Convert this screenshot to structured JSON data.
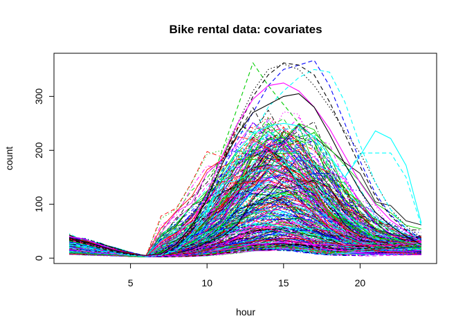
{
  "chart_data": {
    "type": "line",
    "title": "Bike rental data: covariates",
    "xlabel": "hour",
    "ylabel": "count",
    "xlim": [
      0,
      25
    ],
    "ylim": [
      -10,
      380
    ],
    "x_ticks": [
      "5",
      "10",
      "15",
      "20"
    ],
    "x_tick_values": [
      5,
      10,
      15,
      20
    ],
    "y_ticks": [
      "0",
      "100",
      "200",
      "300"
    ],
    "y_tick_values": [
      0,
      100,
      200,
      300
    ],
    "x": [
      1,
      2,
      3,
      4,
      5,
      6,
      7,
      8,
      9,
      10,
      11,
      12,
      13,
      14,
      15,
      16,
      17,
      18,
      19,
      20,
      21,
      22,
      23,
      24
    ],
    "grid": false,
    "legend": "none",
    "palette": [
      "#000000",
      "#FF0000",
      "#00CD00",
      "#0000FF",
      "#00FFFF",
      "#FF00FF"
    ],
    "line_styles": [
      "solid",
      "dashed",
      "dotted",
      "dotdash"
    ],
    "series_count": 360,
    "series_generator_seed": 12345,
    "highlighted_series": [
      {
        "color": "#00FFFF",
        "dash": "solid",
        "values": [
          30,
          25,
          18,
          12,
          6,
          4,
          6,
          18,
          45,
          90,
          150,
          200,
          230,
          245,
          250,
          245,
          225,
          190,
          150,
          190,
          236,
          222,
          172,
          65
        ]
      },
      {
        "color": "#00FFFF",
        "dash": "dashed",
        "values": [
          28,
          22,
          15,
          10,
          5,
          3,
          5,
          15,
          40,
          85,
          140,
          185,
          210,
          230,
          240,
          238,
          215,
          185,
          150,
          195,
          195,
          195,
          150,
          60
        ]
      },
      {
        "color": "#00CD00",
        "dash": "dashed",
        "values": [
          32,
          26,
          18,
          11,
          6,
          4,
          6,
          20,
          55,
          120,
          200,
          280,
          362,
          320,
          285,
          250,
          215,
          160,
          110,
          75,
          55,
          40,
          30,
          20
        ]
      },
      {
        "color": "#0000FF",
        "dash": "dashed",
        "values": [
          30,
          24,
          16,
          10,
          5,
          3,
          6,
          18,
          48,
          100,
          160,
          220,
          270,
          320,
          350,
          358,
          367,
          320,
          250,
          180,
          120,
          80,
          55,
          35
        ]
      },
      {
        "color": "#000000",
        "dash": "dashed",
        "values": [
          34,
          27,
          19,
          12,
          6,
          4,
          6,
          20,
          52,
          110,
          175,
          240,
          300,
          340,
          362,
          358,
          340,
          290,
          230,
          170,
          115,
          78,
          52,
          32
        ]
      },
      {
        "color": "#000000",
        "dash": "dotted",
        "values": [
          36,
          28,
          20,
          13,
          7,
          4,
          7,
          22,
          55,
          115,
          180,
          250,
          310,
          350,
          360,
          350,
          320,
          280,
          235,
          195,
          140,
          90,
          60,
          38
        ]
      },
      {
        "color": "#00FFFF",
        "dash": "dashed",
        "values": [
          25,
          20,
          14,
          9,
          5,
          3,
          5,
          14,
          40,
          80,
          130,
          180,
          230,
          280,
          310,
          335,
          350,
          345,
          290,
          210,
          140,
          90,
          55,
          30
        ]
      },
      {
        "color": "#FF00FF",
        "dash": "solid",
        "values": [
          40,
          35,
          25,
          15,
          8,
          4,
          7,
          25,
          60,
          120,
          190,
          250,
          295,
          320,
          325,
          310,
          280,
          240,
          190,
          140,
          100,
          70,
          50,
          30
        ]
      },
      {
        "color": "#000000",
        "dash": "solid",
        "values": [
          38,
          30,
          22,
          14,
          8,
          5,
          8,
          26,
          60,
          110,
          175,
          230,
          270,
          285,
          300,
          305,
          280,
          230,
          175,
          125,
          85,
          60,
          40,
          25
        ]
      }
    ]
  }
}
